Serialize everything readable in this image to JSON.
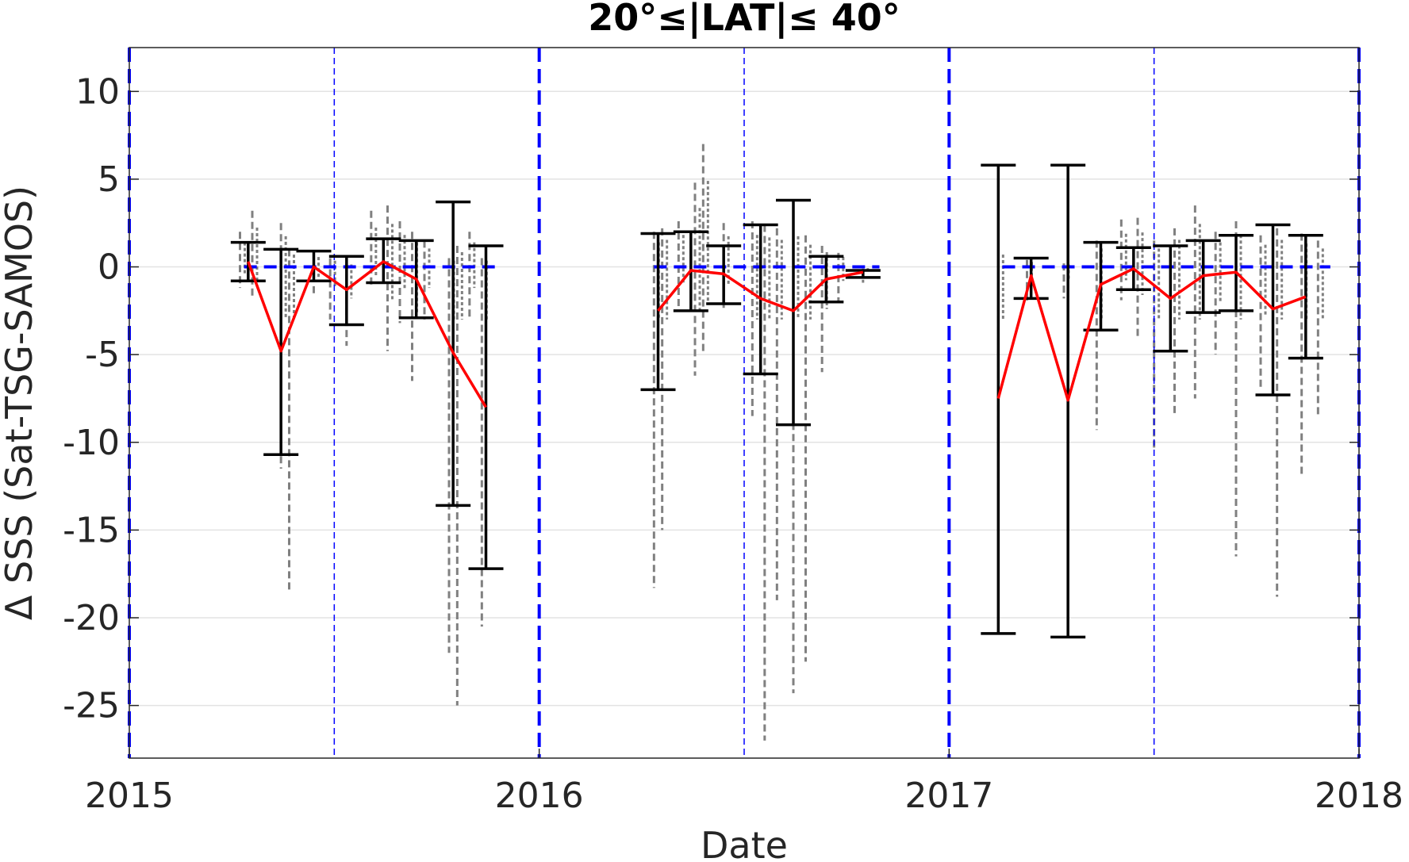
{
  "chart_data": {
    "type": "line",
    "title": "20°≤|LAT|≤ 40°",
    "xlabel": "Date",
    "ylabel": "Δ SSS (Sat-TSG-SAMOS)",
    "xlim": [
      2015.0,
      2018.0
    ],
    "ylim": [
      -28,
      12.5
    ],
    "xticks": [
      2015,
      2016,
      2017,
      2018
    ],
    "xtick_labels": [
      "2015",
      "2016",
      "2017",
      "2018"
    ],
    "yticks": [
      10,
      5,
      0,
      -5,
      -10,
      -15,
      -20,
      -25
    ],
    "ytick_labels": [
      "10",
      "5",
      "0",
      "-5",
      "-10",
      "-15",
      "-20",
      "-25"
    ],
    "grid": true,
    "colors": {
      "mean_line": "#ff0000",
      "error_bars": "#000000",
      "reference_lines": "#0000ff",
      "scatter": "#808080"
    },
    "vertical_reference_lines": {
      "year_boundaries": [
        2015.0,
        2016.0,
        2017.0,
        2018.0
      ],
      "mid_year": [
        2015.5,
        2016.5,
        2017.5
      ]
    },
    "zero_reference_segments": [
      {
        "x_start": 2015.28,
        "x_end": 2015.9
      },
      {
        "x_start": 2016.28,
        "x_end": 2016.83
      },
      {
        "x_start": 2017.13,
        "x_end": 2017.93
      }
    ],
    "series": [
      {
        "x": [
          2015.29,
          2015.37,
          2015.45,
          2015.53,
          2015.62,
          2015.7,
          2015.79,
          2015.87
        ],
        "y": [
          0.3,
          -4.8,
          0.0,
          -1.3,
          0.3,
          -0.7,
          -4.9,
          -8.0
        ],
        "err_upper": [
          1.4,
          1.0,
          0.9,
          0.6,
          1.6,
          1.5,
          3.7,
          1.2
        ],
        "err_lower": [
          -0.8,
          -10.7,
          -0.8,
          -3.3,
          -0.9,
          -2.9,
          -13.6,
          -17.2
        ]
      },
      {
        "x": [
          2016.29,
          2016.37,
          2016.45,
          2016.54,
          2016.62,
          2016.7,
          2016.79
        ],
        "y": [
          -2.5,
          -0.2,
          -0.4,
          -1.8,
          -2.5,
          -0.7,
          -0.3
        ],
        "err_upper": [
          1.9,
          2.0,
          1.2,
          2.4,
          3.8,
          0.6,
          -0.2
        ],
        "err_lower": [
          -7.0,
          -2.5,
          -2.1,
          -6.1,
          -9.0,
          -2.0,
          -0.6
        ]
      },
      {
        "x": [
          2017.12,
          2017.2,
          2017.29,
          2017.37,
          2017.45,
          2017.54,
          2017.62,
          2017.7,
          2017.79,
          2017.87
        ],
        "y": [
          -7.5,
          -0.5,
          -7.6,
          -1.0,
          -0.1,
          -1.8,
          -0.5,
          -0.3,
          -2.4,
          -1.7
        ],
        "err_upper": [
          5.8,
          0.5,
          5.8,
          1.4,
          1.1,
          1.2,
          1.5,
          1.8,
          2.4,
          1.8
        ],
        "err_lower": [
          -20.9,
          -1.8,
          -21.1,
          -3.6,
          -1.3,
          -4.8,
          -2.6,
          -2.5,
          -7.3,
          -5.2
        ]
      }
    ],
    "scatter_clusters": [
      {
        "x": 2015.27,
        "y_max": 2.0,
        "y_min": -1.2
      },
      {
        "x": 2015.3,
        "y_max": 3.2,
        "y_min": -1.8
      },
      {
        "x": 2015.37,
        "y_max": 2.5,
        "y_min": -11.5
      },
      {
        "x": 2015.39,
        "y_max": 1.0,
        "y_min": -18.5
      },
      {
        "x": 2015.45,
        "y_max": 0.8,
        "y_min": -1.5
      },
      {
        "x": 2015.49,
        "y_max": 0.5,
        "y_min": -3.0
      },
      {
        "x": 2015.53,
        "y_max": 0.2,
        "y_min": -4.5
      },
      {
        "x": 2015.59,
        "y_max": 3.2,
        "y_min": -1.2
      },
      {
        "x": 2015.63,
        "y_max": 3.5,
        "y_min": -4.8
      },
      {
        "x": 2015.66,
        "y_max": 2.6,
        "y_min": -3.2
      },
      {
        "x": 2015.69,
        "y_max": 2.0,
        "y_min": -6.5
      },
      {
        "x": 2015.72,
        "y_max": 1.5,
        "y_min": -3.0
      },
      {
        "x": 2015.78,
        "y_max": 0.5,
        "y_min": -22.0
      },
      {
        "x": 2015.8,
        "y_max": 1.2,
        "y_min": -25.0
      },
      {
        "x": 2015.83,
        "y_max": 2.0,
        "y_min": -3.0
      },
      {
        "x": 2015.86,
        "y_max": 0.5,
        "y_min": -20.5
      },
      {
        "x": 2016.28,
        "y_max": 2.0,
        "y_min": -18.3
      },
      {
        "x": 2016.3,
        "y_max": 2.2,
        "y_min": -15.0
      },
      {
        "x": 2016.34,
        "y_max": 2.6,
        "y_min": -2.5
      },
      {
        "x": 2016.38,
        "y_max": 4.8,
        "y_min": -6.2
      },
      {
        "x": 2016.4,
        "y_max": 7.0,
        "y_min": -5.0
      },
      {
        "x": 2016.45,
        "y_max": 2.5,
        "y_min": -2.5
      },
      {
        "x": 2016.52,
        "y_max": 2.6,
        "y_min": -8.5
      },
      {
        "x": 2016.55,
        "y_max": 2.4,
        "y_min": -27.0
      },
      {
        "x": 2016.58,
        "y_max": 2.2,
        "y_min": -19.0
      },
      {
        "x": 2016.62,
        "y_max": 2.5,
        "y_min": -24.3
      },
      {
        "x": 2016.65,
        "y_max": 1.8,
        "y_min": -22.5
      },
      {
        "x": 2016.69,
        "y_max": 1.2,
        "y_min": -6.0
      },
      {
        "x": 2016.73,
        "y_max": 0.8,
        "y_min": -2.0
      },
      {
        "x": 2016.79,
        "y_max": -0.1,
        "y_min": -0.9
      },
      {
        "x": 2017.12,
        "y_max": 1.0,
        "y_min": -13.0
      },
      {
        "x": 2017.19,
        "y_max": 0.4,
        "y_min": -2.0
      },
      {
        "x": 2017.28,
        "y_max": 0.2,
        "y_min": -1.8
      },
      {
        "x": 2017.36,
        "y_max": 1.5,
        "y_min": -9.3
      },
      {
        "x": 2017.42,
        "y_max": 2.7,
        "y_min": -1.9
      },
      {
        "x": 2017.46,
        "y_max": 2.8,
        "y_min": -4.0
      },
      {
        "x": 2017.5,
        "y_max": 1.5,
        "y_min": -10.4
      },
      {
        "x": 2017.55,
        "y_max": 2.2,
        "y_min": -8.5
      },
      {
        "x": 2017.6,
        "y_max": 3.5,
        "y_min": -7.5
      },
      {
        "x": 2017.65,
        "y_max": 2.0,
        "y_min": -5.0
      },
      {
        "x": 2017.7,
        "y_max": 2.6,
        "y_min": -16.5
      },
      {
        "x": 2017.76,
        "y_max": 1.8,
        "y_min": -7.0
      },
      {
        "x": 2017.8,
        "y_max": 2.2,
        "y_min": -18.8
      },
      {
        "x": 2017.86,
        "y_max": 1.9,
        "y_min": -12.0
      },
      {
        "x": 2017.9,
        "y_max": 1.5,
        "y_min": -8.5
      }
    ]
  }
}
